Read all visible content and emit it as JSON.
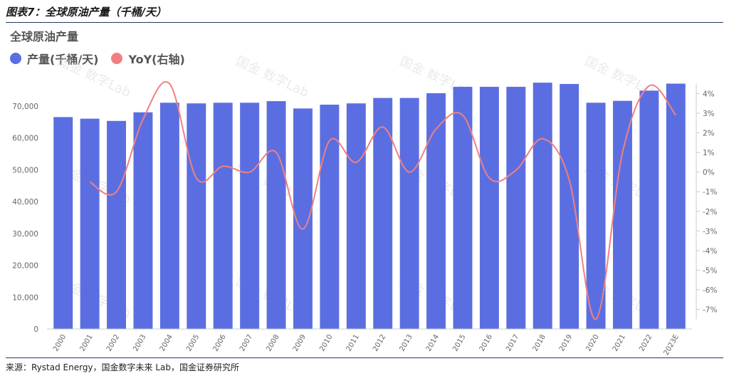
{
  "figure_title": "图表7：全球原油产量（千桶/天）",
  "source": "来源：Rystad Energy，国金数字未来 Lab，国金证券研究所",
  "watermark": "国金 数字Lab",
  "colors": {
    "bar": "#5b6ee1",
    "line": "#f08080",
    "axis_text": "#666666",
    "grid": "#e6e6e6",
    "rule": "#1f3b63"
  },
  "chart_data": {
    "type": "bar",
    "title": "全球原油产量",
    "categories": [
      "2000",
      "2001",
      "2002",
      "2003",
      "2004",
      "2005",
      "2006",
      "2007",
      "2008",
      "2009",
      "2010",
      "2011",
      "2012",
      "2013",
      "2014",
      "2015",
      "2016",
      "2017",
      "2018",
      "2019",
      "2020",
      "2021",
      "2022",
      "2023E"
    ],
    "series": [
      {
        "name": "产量(千桶/天)",
        "type": "bar",
        "axis": "left",
        "values": [
          66500,
          66000,
          65300,
          68000,
          71000,
          70800,
          71000,
          71000,
          71500,
          69200,
          70400,
          70800,
          72500,
          72500,
          74000,
          76000,
          76000,
          76000,
          77300,
          76900,
          71000,
          71600,
          74800,
          77000
        ]
      },
      {
        "name": "YoY(右轴)",
        "type": "line",
        "axis": "right",
        "unit": "%",
        "values": [
          null,
          -0.5,
          -1.0,
          2.7,
          4.5,
          -0.3,
          0.3,
          0.0,
          1.0,
          -2.9,
          1.6,
          0.5,
          2.3,
          0.0,
          2.2,
          2.9,
          -0.3,
          0.1,
          1.7,
          -0.4,
          -7.5,
          1.0,
          4.4,
          2.9
        ]
      }
    ],
    "y_left": {
      "min": 0,
      "max": 80000,
      "ticks": [
        0,
        10000,
        20000,
        30000,
        40000,
        50000,
        60000,
        70000
      ],
      "tick_labels": [
        "0",
        "10,000",
        "20,000",
        "30,000",
        "40,000",
        "50,000",
        "60,000",
        "70,000"
      ]
    },
    "y_right": {
      "min": -8,
      "max": 5,
      "ticks": [
        -7,
        -6,
        -5,
        -4,
        -3,
        -2,
        -1,
        0,
        1,
        2,
        3,
        4
      ],
      "tick_labels": [
        "-7%",
        "-6%",
        "-5%",
        "-4%",
        "-3%",
        "-2%",
        "-1%",
        "0%",
        "1%",
        "2%",
        "3%",
        "4%"
      ]
    },
    "legend_position": "top-left",
    "grid": false
  }
}
